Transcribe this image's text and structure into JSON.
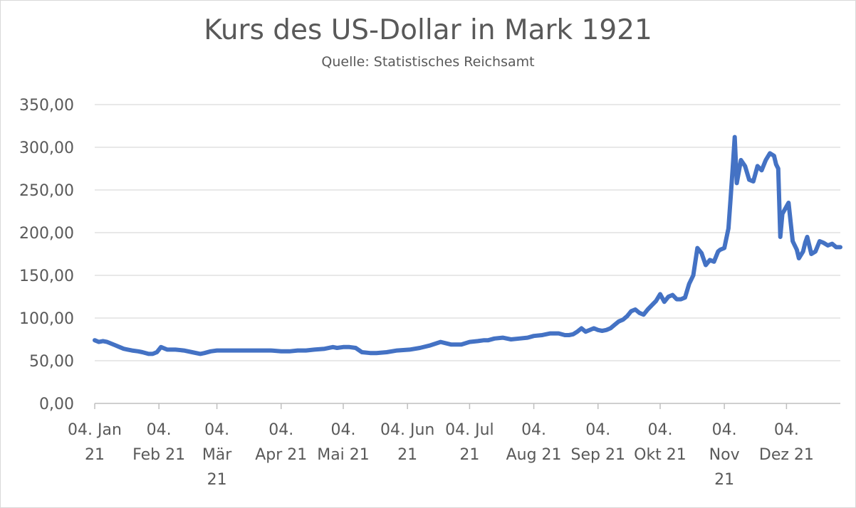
{
  "chart_data": {
    "type": "line",
    "title": "Kurs des US-Dollar in Mark 1921",
    "subtitle": "Quelle: Statistisches Reichsamt",
    "xlabel": "",
    "ylabel": "",
    "ylim": [
      0,
      350
    ],
    "yticks": [
      0,
      50,
      100,
      150,
      200,
      250,
      300,
      350
    ],
    "ytick_labels": [
      "0,00",
      "50,00",
      "100,00",
      "150,00",
      "200,00",
      "250,00",
      "300,00",
      "350,00"
    ],
    "xlim": [
      "1921-01-04",
      "1921-12-30"
    ],
    "grid": "horizontal",
    "legend": "none",
    "color": "#4472c4",
    "x_ticks": [
      {
        "date": "1921-01-04",
        "lines": [
          "04. Jan",
          "21"
        ]
      },
      {
        "date": "1921-02-04",
        "lines": [
          "04.",
          "Feb 21"
        ]
      },
      {
        "date": "1921-03-04",
        "lines": [
          "04.",
          "Mär",
          "21"
        ]
      },
      {
        "date": "1921-04-04",
        "lines": [
          "04.",
          "Apr 21"
        ]
      },
      {
        "date": "1921-05-04",
        "lines": [
          "04.",
          "Mai 21"
        ]
      },
      {
        "date": "1921-06-04",
        "lines": [
          "04. Jun",
          "21"
        ]
      },
      {
        "date": "1921-07-04",
        "lines": [
          "04. Jul",
          "21"
        ]
      },
      {
        "date": "1921-08-04",
        "lines": [
          "04.",
          "Aug 21"
        ]
      },
      {
        "date": "1921-09-04",
        "lines": [
          "04.",
          "Sep 21"
        ]
      },
      {
        "date": "1921-10-04",
        "lines": [
          "04.",
          "Okt 21"
        ]
      },
      {
        "date": "1921-11-04",
        "lines": [
          "04.",
          "Nov",
          "21"
        ]
      },
      {
        "date": "1921-12-04",
        "lines": [
          "04.",
          "Dez 21"
        ]
      }
    ],
    "series": [
      {
        "x": [
          "1921-01-04",
          "1921-01-06",
          "1921-01-08",
          "1921-01-10",
          "1921-01-12",
          "1921-01-14",
          "1921-01-16",
          "1921-01-18",
          "1921-01-20",
          "1921-01-22",
          "1921-01-25",
          "1921-01-27",
          "1921-01-30",
          "1921-02-01",
          "1921-02-03",
          "1921-02-05",
          "1921-02-08",
          "1921-02-12",
          "1921-02-16",
          "1921-02-20",
          "1921-02-24",
          "1921-02-26",
          "1921-03-01",
          "1921-03-04",
          "1921-03-08",
          "1921-03-12",
          "1921-03-16",
          "1921-03-20",
          "1921-03-25",
          "1921-03-30",
          "1921-04-04",
          "1921-04-08",
          "1921-04-12",
          "1921-04-16",
          "1921-04-20",
          "1921-04-25",
          "1921-04-29",
          "1921-05-01",
          "1921-05-04",
          "1921-05-07",
          "1921-05-10",
          "1921-05-13",
          "1921-05-17",
          "1921-05-20",
          "1921-05-25",
          "1921-05-30",
          "1921-06-05",
          "1921-06-10",
          "1921-06-15",
          "1921-06-20",
          "1921-06-25",
          "1921-06-30",
          "1921-07-04",
          "1921-07-08",
          "1921-07-11",
          "1921-07-13",
          "1921-07-16",
          "1921-07-20",
          "1921-07-24",
          "1921-07-28",
          "1921-08-01",
          "1921-08-04",
          "1921-08-08",
          "1921-08-12",
          "1921-08-16",
          "1921-08-19",
          "1921-08-21",
          "1921-08-23",
          "1921-08-25",
          "1921-08-27",
          "1921-08-29",
          "1921-08-31",
          "1921-09-02",
          "1921-09-04",
          "1921-09-06",
          "1921-09-08",
          "1921-09-10",
          "1921-09-12",
          "1921-09-14",
          "1921-09-16",
          "1921-09-18",
          "1921-09-20",
          "1921-09-22",
          "1921-09-24",
          "1921-09-26",
          "1921-09-28",
          "1921-09-30",
          "1921-10-02",
          "1921-10-04",
          "1921-10-06",
          "1921-10-08",
          "1921-10-10",
          "1921-10-12",
          "1921-10-14",
          "1921-10-16",
          "1921-10-18",
          "1921-10-20",
          "1921-10-22",
          "1921-10-24",
          "1921-10-26",
          "1921-10-28",
          "1921-10-30",
          "1921-11-01",
          "1921-11-02",
          "1921-11-04",
          "1921-11-06",
          "1921-11-07",
          "1921-11-08",
          "1921-11-09",
          "1921-11-10",
          "1921-11-12",
          "1921-11-14",
          "1921-11-16",
          "1921-11-18",
          "1921-11-20",
          "1921-11-22",
          "1921-11-24",
          "1921-11-26",
          "1921-11-28",
          "1921-11-29",
          "1921-11-30",
          "1921-12-01",
          "1921-12-02",
          "1921-12-05",
          "1921-12-07",
          "1921-12-09",
          "1921-12-10",
          "1921-12-12",
          "1921-12-13",
          "1921-12-14",
          "1921-12-16",
          "1921-12-18",
          "1921-12-20",
          "1921-12-22",
          "1921-12-24",
          "1921-12-26",
          "1921-12-28",
          "1921-12-30"
        ],
        "values": [
          74,
          72,
          73,
          72,
          70,
          68,
          66,
          64,
          63,
          62,
          61,
          60,
          58,
          58,
          60,
          66,
          63,
          63,
          62,
          60,
          58,
          59,
          61,
          62,
          62,
          62,
          62,
          62,
          62,
          62,
          61,
          61,
          62,
          62,
          63,
          64,
          66,
          65,
          66,
          66,
          65,
          60,
          59,
          59,
          60,
          62,
          63,
          65,
          68,
          72,
          69,
          69,
          72,
          73,
          74,
          74,
          76,
          77,
          75,
          76,
          77,
          79,
          80,
          82,
          82,
          80,
          80,
          81,
          84,
          88,
          84,
          86,
          88,
          86,
          85,
          86,
          88,
          92,
          96,
          98,
          102,
          108,
          110,
          106,
          104,
          110,
          115,
          120,
          128,
          119,
          125,
          127,
          122,
          122,
          124,
          140,
          150,
          182,
          176,
          162,
          168,
          166,
          178,
          180,
          182,
          205,
          240,
          275,
          312,
          258,
          285,
          278,
          262,
          260,
          278,
          273,
          285,
          293,
          290,
          280,
          275,
          195,
          222,
          235,
          190,
          180,
          170,
          178,
          188,
          195,
          175,
          178,
          190,
          188,
          185,
          187,
          183,
          183
        ]
      }
    ]
  }
}
